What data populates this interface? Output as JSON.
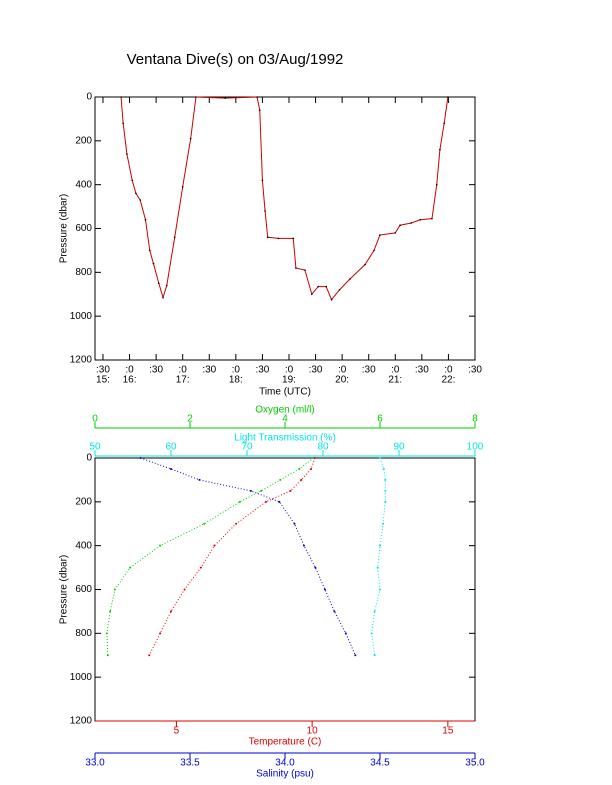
{
  "title": "Ventana Dive(s) on 03/Aug/1992",
  "chart_data": [
    {
      "type": "line",
      "xlabel": "Time (UTC)",
      "ylabel": "Pressure (dbar)",
      "xlim": [
        15.35,
        22.5
      ],
      "ylim": [
        1200,
        0
      ],
      "xticks": [
        {
          "value": 15.5,
          "label": ":30"
        },
        {
          "value": 16,
          "label": ":0"
        },
        {
          "value": 16.5,
          "label": ":30"
        },
        {
          "value": 17,
          "label": ":0"
        },
        {
          "value": 17.5,
          "label": ":30"
        },
        {
          "value": 18,
          "label": ":0"
        },
        {
          "value": 18.5,
          "label": ":30"
        },
        {
          "value": 19,
          "label": ":0"
        },
        {
          "value": 19.5,
          "label": ":30"
        },
        {
          "value": 20,
          "label": ":0"
        },
        {
          "value": 20.5,
          "label": ":30"
        },
        {
          "value": 21,
          "label": ":0"
        },
        {
          "value": 21.5,
          "label": ":30"
        },
        {
          "value": 22,
          "label": ":0"
        },
        {
          "value": 22.5,
          "label": ":30"
        }
      ],
      "hour_labels": [
        {
          "value": 15.5,
          "label": "15:"
        },
        {
          "value": 16,
          "label": "16:"
        },
        {
          "value": 17,
          "label": "17:"
        },
        {
          "value": 18,
          "label": "18:"
        },
        {
          "value": 19,
          "label": "19:"
        },
        {
          "value": 20,
          "label": "20:"
        },
        {
          "value": 21,
          "label": "21:"
        },
        {
          "value": 22,
          "label": "22:"
        }
      ],
      "yticks": [
        0,
        200,
        400,
        600,
        800,
        1000,
        1200
      ],
      "color": "#cc0000",
      "x": [
        15.84,
        15.88,
        15.95,
        16.05,
        16.12,
        16.2,
        16.3,
        16.38,
        16.45,
        16.55,
        16.63,
        16.7,
        16.85,
        17.0,
        17.15,
        17.25,
        17.8,
        18.4,
        18.45,
        18.5,
        18.55,
        18.6,
        18.8,
        19.08,
        19.13,
        19.3,
        19.43,
        19.55,
        19.7,
        19.8,
        19.95,
        20.15,
        20.43,
        20.6,
        20.71,
        21.0,
        21.09,
        21.3,
        21.47,
        21.69,
        21.78,
        21.84,
        21.92,
        21.99
      ],
      "values": [
        0,
        120,
        260,
        380,
        440,
        470,
        560,
        700,
        760,
        850,
        915,
        860,
        640,
        410,
        190,
        0,
        5,
        0,
        60,
        380,
        520,
        640,
        645,
        645,
        780,
        790,
        900,
        865,
        865,
        925,
        880,
        830,
        765,
        700,
        630,
        620,
        585,
        575,
        560,
        555,
        400,
        240,
        120,
        0
      ]
    },
    {
      "type": "profile",
      "ylabel": "Pressure (dbar)",
      "ylim": [
        1200,
        0
      ],
      "yticks": [
        0,
        200,
        400,
        600,
        800,
        1000,
        1200
      ],
      "y": [
        0,
        50,
        100,
        150,
        200,
        300,
        400,
        500,
        600,
        700,
        800,
        900
      ],
      "axes": [
        {
          "label": "Oxygen (ml/l)",
          "color": "#00cc00",
          "position": "top",
          "lim": [
            0,
            8
          ],
          "ticks": [
            0,
            2,
            4,
            6,
            8
          ]
        },
        {
          "label": "Light Transmission (%)",
          "color": "#00e5e5",
          "position": "top",
          "lim": [
            50,
            100
          ],
          "ticks": [
            50,
            60,
            70,
            80,
            90,
            100
          ]
        },
        {
          "label": "Temperature (C)",
          "color": "#dd0000",
          "position": "bottom",
          "lim": [
            2,
            16
          ],
          "ticks": [
            5,
            10,
            15
          ]
        },
        {
          "label": "Salinity (psu)",
          "color": "#0000cc",
          "position": "bottom",
          "lim": [
            33,
            35
          ],
          "ticks": [
            {
              "value": 33,
              "label": "33.0"
            },
            33.5,
            {
              "value": 34,
              "label": "34.0"
            },
            34.5,
            {
              "value": 35,
              "label": "35.0"
            }
          ]
        }
      ],
      "series": [
        {
          "axis": 0,
          "color": "#00cc00",
          "values": [
            4.6,
            4.3,
            3.9,
            3.5,
            3.05,
            2.3,
            1.37,
            0.74,
            0.42,
            0.32,
            0.25,
            0.27
          ]
        },
        {
          "axis": 1,
          "color": "#00e5e5",
          "values": [
            87.5,
            88.0,
            88.2,
            88.2,
            88.2,
            87.9,
            87.5,
            87.2,
            87.5,
            86.8,
            86.4,
            86.8
          ]
        },
        {
          "axis": 2,
          "color": "#dd0000",
          "values": [
            10.1,
            9.96,
            9.6,
            9.2,
            8.3,
            7.2,
            6.4,
            5.9,
            5.3,
            4.8,
            4.4,
            4.0
          ]
        },
        {
          "axis": 3,
          "color": "#0000cc",
          "values": [
            33.24,
            33.4,
            33.55,
            33.82,
            33.97,
            34.05,
            34.1,
            34.16,
            34.21,
            34.26,
            34.32,
            34.37
          ]
        }
      ]
    }
  ]
}
